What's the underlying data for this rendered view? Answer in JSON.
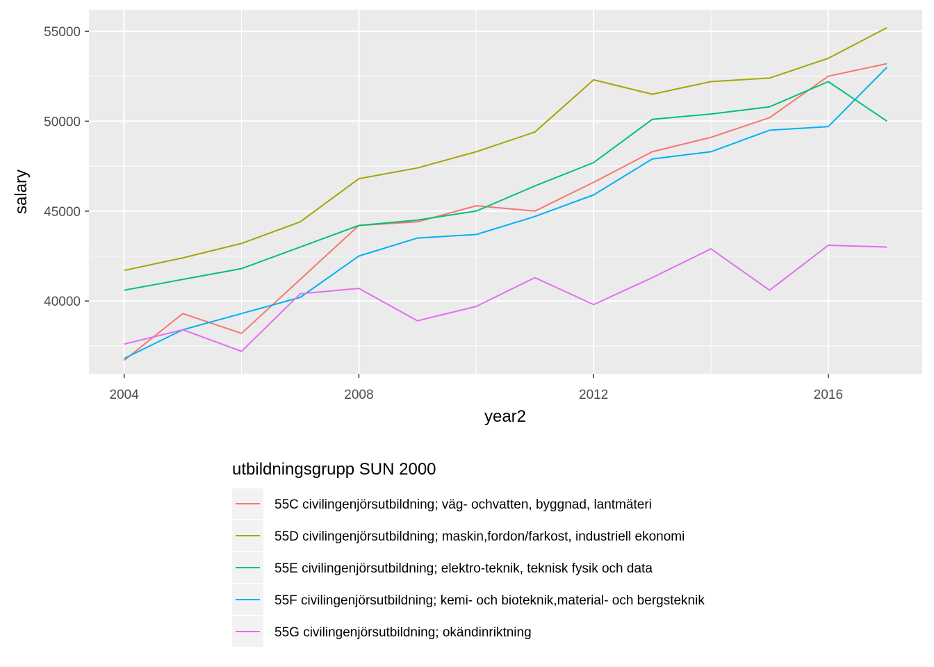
{
  "chart_data": {
    "type": "line",
    "xlabel": "year2",
    "ylabel": "salary",
    "xlim": [
      2003.4,
      2017.6
    ],
    "ylim": [
      35950,
      56200
    ],
    "x_ticks": [
      2004,
      2008,
      2012,
      2016
    ],
    "y_ticks": [
      40000,
      45000,
      50000,
      55000
    ],
    "x_tick_labels": [
      "2004",
      "2008",
      "2012",
      "2016"
    ],
    "y_tick_labels": [
      "40000",
      "45000",
      "50000",
      "55000"
    ],
    "grid": true,
    "legend": {
      "title": "utbildningsgrupp SUN 2000",
      "position": "bottom"
    },
    "x": [
      2004,
      2005,
      2006,
      2007,
      2008,
      2009,
      2010,
      2011,
      2012,
      2013,
      2014,
      2015,
      2016,
      2017
    ],
    "series": [
      {
        "name": "55C civilingenjörsutbildning; väg- ochvatten, byggnad, lantmäteri",
        "color": "#F8766D",
        "values": [
          36700,
          39300,
          38200,
          41200,
          44200,
          44400,
          45300,
          45000,
          46600,
          48300,
          49100,
          50200,
          52500,
          53200
        ]
      },
      {
        "name": "55D civilingenjörsutbildning; maskin,fordon/farkost, industriell ekonomi",
        "color": "#A3A500",
        "values": [
          41700,
          42400,
          43200,
          44400,
          46800,
          47400,
          48300,
          49400,
          52300,
          51500,
          52200,
          52400,
          53500,
          55200
        ]
      },
      {
        "name": "55E civilingenjörsutbildning; elektro-teknik, teknisk fysik och data",
        "color": "#00BF7D",
        "values": [
          40600,
          41200,
          41800,
          43000,
          44200,
          44500,
          45000,
          46400,
          47700,
          50100,
          50400,
          50800,
          52200,
          50000
        ]
      },
      {
        "name": "55F civilingenjörsutbildning; kemi- och bioteknik,material- och bergsteknik",
        "color": "#00B0F6",
        "values": [
          36800,
          38400,
          39300,
          40200,
          42500,
          43500,
          43700,
          44700,
          45900,
          47900,
          48300,
          49500,
          49700,
          53000
        ]
      },
      {
        "name": "55G civilingenjörsutbildning; okändinriktning",
        "color": "#E76BF3",
        "values": [
          37600,
          38400,
          37200,
          40400,
          40700,
          38900,
          39700,
          41300,
          39800,
          41300,
          42900,
          40600,
          43100,
          43000
        ]
      }
    ]
  }
}
